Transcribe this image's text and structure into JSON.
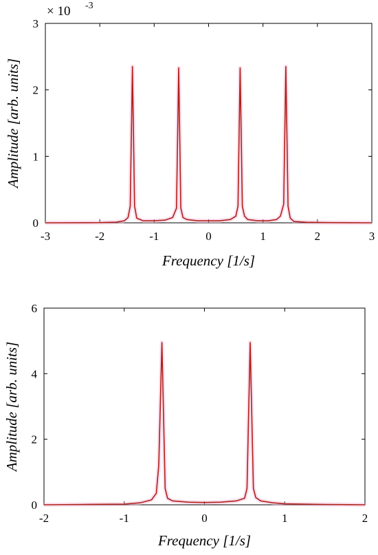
{
  "chart_data": [
    {
      "type": "line",
      "xlabel": "Frequency [1/s]",
      "ylabel": "Amplitude [arb. units]",
      "xlim": [
        -3,
        3
      ],
      "ylim": [
        0,
        3
      ],
      "x_ticks": [
        "-3",
        "-2",
        "-1",
        "0",
        "1",
        "2",
        "3"
      ],
      "y_ticks": [
        "0",
        "1",
        "2",
        "3"
      ],
      "y_exponent": {
        "base": "× 10",
        "power": "-3"
      },
      "series": [
        {
          "color": "#b0201a",
          "x": [
            -3.0,
            -2.0,
            -1.7,
            -1.55,
            -1.48,
            -1.44,
            -1.4,
            -1.36,
            -1.32,
            -1.2,
            -1.0,
            -0.8,
            -0.66,
            -0.59,
            -0.55,
            -0.51,
            -0.47,
            -0.4,
            -0.2,
            0.0,
            0.2,
            0.4,
            0.5,
            0.54,
            0.58,
            0.62,
            0.66,
            0.72,
            0.9,
            1.1,
            1.25,
            1.32,
            1.38,
            1.42,
            1.46,
            1.5,
            1.57,
            1.8,
            2.2,
            3.0
          ],
          "y": [
            0.0,
            0.003,
            0.01,
            0.03,
            0.08,
            0.25,
            2.35,
            0.25,
            0.07,
            0.03,
            0.03,
            0.04,
            0.08,
            0.22,
            2.33,
            0.22,
            0.08,
            0.05,
            0.03,
            0.03,
            0.03,
            0.05,
            0.1,
            0.25,
            2.33,
            0.25,
            0.1,
            0.05,
            0.03,
            0.03,
            0.05,
            0.1,
            0.28,
            2.35,
            0.25,
            0.07,
            0.02,
            0.008,
            0.003,
            0.0
          ]
        }
      ]
    },
    {
      "type": "line",
      "xlabel": "Frequency [1/s]",
      "ylabel": "Amplitude [arb. units]",
      "xlim": [
        -2,
        2
      ],
      "ylim": [
        0,
        6
      ],
      "x_ticks": [
        "-2",
        "-1",
        "0",
        "1",
        "2"
      ],
      "y_ticks": [
        "0",
        "2",
        "4",
        "6"
      ],
      "series": [
        {
          "color": "#b0201a",
          "x": [
            -2.0,
            -1.5,
            -1.0,
            -0.8,
            -0.66,
            -0.6,
            -0.57,
            -0.53,
            -0.49,
            -0.46,
            -0.4,
            -0.2,
            0.0,
            0.2,
            0.4,
            0.5,
            0.53,
            0.57,
            0.61,
            0.64,
            0.7,
            0.85,
            1.0,
            1.5,
            2.0
          ],
          "y": [
            0.0,
            0.01,
            0.02,
            0.06,
            0.15,
            0.35,
            1.2,
            4.95,
            0.5,
            0.2,
            0.12,
            0.08,
            0.07,
            0.08,
            0.12,
            0.2,
            0.5,
            4.95,
            0.5,
            0.22,
            0.12,
            0.06,
            0.03,
            0.01,
            0.0
          ]
        }
      ]
    }
  ]
}
